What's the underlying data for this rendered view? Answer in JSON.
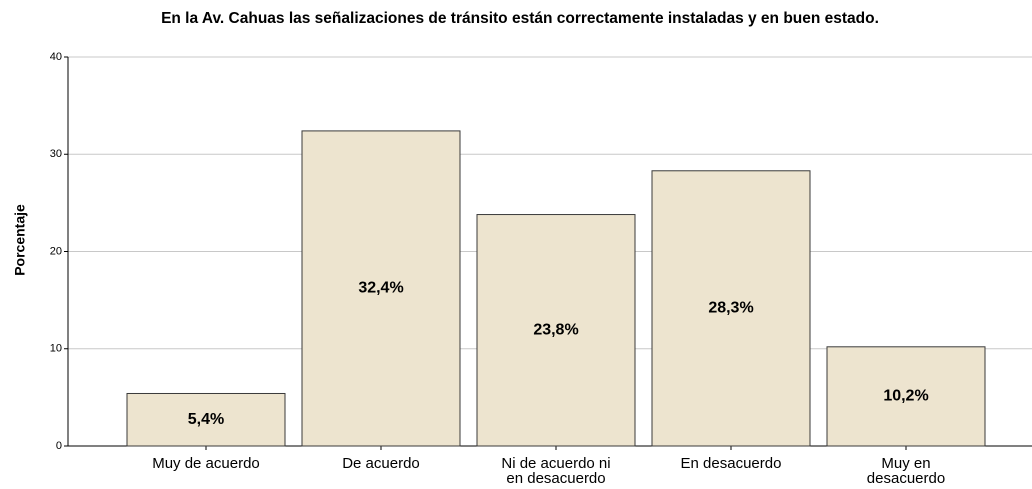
{
  "chart_data": {
    "type": "bar",
    "title": "En la Av. Cahuas las señalizaciones de tránsito están correctamente instaladas y en buen estado.",
    "ylabel": "Porcentaje",
    "categories": [
      "Muy de acuerdo",
      "De acuerdo",
      "Ni de acuerdo ni en desacuerdo",
      "En desacuerdo",
      "Muy en desacuerdo"
    ],
    "values": [
      5.4,
      32.4,
      23.8,
      28.3,
      10.2
    ],
    "value_labels": [
      "5,4%",
      "32,4%",
      "23,8%",
      "28,3%",
      "10,2%"
    ],
    "color": "#ede4cf",
    "ylim": [
      0,
      40
    ],
    "yticks": [
      0,
      10,
      20,
      30,
      40
    ],
    "grid": true
  }
}
